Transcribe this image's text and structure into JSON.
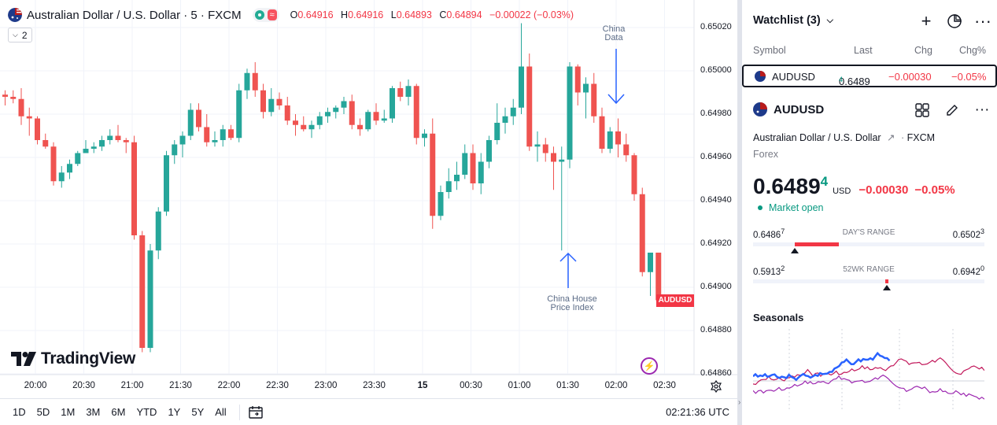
{
  "chart": {
    "symbol_title": "Australian Dollar / U.S. Dollar · 5 · FXCM",
    "ohlc": {
      "o_label": "O",
      "o": "0.64916",
      "h_label": "H",
      "h": "0.64916",
      "l_label": "L",
      "l": "0.64893",
      "c_label": "C",
      "c": "0.64894",
      "change": "−0.00022 (−0.03%)"
    },
    "indicator_count": "2",
    "price_axis": [
      "0.65020",
      "0.65000",
      "0.64980",
      "0.64960",
      "0.64940",
      "0.64920",
      "0.64900",
      "0.64880",
      "0.64860"
    ],
    "last_price_tag": "AUDUSD",
    "time_axis": [
      "20:00",
      "20:30",
      "21:00",
      "21:30",
      "22:00",
      "22:30",
      "23:00",
      "23:30",
      "15",
      "00:30",
      "01:00",
      "01:30",
      "02:00",
      "02:30"
    ],
    "annotations": {
      "china_data": [
        "China",
        "Data"
      ],
      "china_house": [
        "China House",
        "Price Index"
      ]
    },
    "brand": "TradingView",
    "colors": {
      "up": "#26a69a",
      "down": "#ef5350",
      "annotation": "#2962ff"
    }
  },
  "bottom_bar": {
    "ranges": [
      "1D",
      "5D",
      "1M",
      "3M",
      "6M",
      "YTD",
      "1Y",
      "5Y",
      "All"
    ],
    "clock": "02:21:36 UTC"
  },
  "watchlist": {
    "title": "Watchlist (3)",
    "columns": {
      "symbol": "Symbol",
      "last": "Last",
      "chg": "Chg",
      "chgp": "Chg%"
    },
    "row": {
      "symbol": "AUDUSD",
      "last_main": "0.6489",
      "last_sup": "4",
      "chg": "−0.00030",
      "chgp": "−0.05%"
    }
  },
  "details": {
    "symbol": "AUDUSD",
    "name": "Australian Dollar / U.S. Dollar",
    "exchange": "FXCM",
    "type": "Forex",
    "price_main": "0.6489",
    "price_sup": "4",
    "currency": "USD",
    "change": "−0.00030",
    "change_pct": "−0.05%",
    "market_status": "Market open",
    "days_range": {
      "label": "DAY'S RANGE",
      "low_main": "0.6486",
      "low_sup": "7",
      "high_main": "0.6502",
      "high_sup": "3",
      "current_fraction": 0.17
    },
    "wk52_range": {
      "label": "52WK RANGE",
      "low_main": "0.5913",
      "low_sup": "2",
      "high_main": "0.6942",
      "high_sup": "0",
      "current_fraction": 0.57
    },
    "seasonals_title": "Seasonals",
    "seasonal_colors": [
      "#2962ff",
      "#c2185b",
      "#9c27b0"
    ]
  },
  "chart_data": {
    "type": "candlestick",
    "series_name": "AUDUSD",
    "interval": "5",
    "price_range": [
      0.64855,
      0.6503
    ],
    "candles": [
      [
        0.64989,
        0.64991,
        0.64984,
        0.64988
      ],
      [
        0.64988,
        0.64991,
        0.64985,
        0.64987
      ],
      [
        0.64987,
        0.64992,
        0.64975,
        0.64979
      ],
      [
        0.64979,
        0.64983,
        0.6497,
        0.64978
      ],
      [
        0.64978,
        0.64979,
        0.64966,
        0.64968
      ],
      [
        0.64968,
        0.64971,
        0.64964,
        0.64965
      ],
      [
        0.64965,
        0.64967,
        0.64947,
        0.64949
      ],
      [
        0.64949,
        0.64956,
        0.64946,
        0.64953
      ],
      [
        0.64953,
        0.64959,
        0.6495,
        0.64957
      ],
      [
        0.64957,
        0.64963,
        0.64956,
        0.64962
      ],
      [
        0.64962,
        0.64968,
        0.64962,
        0.64964
      ],
      [
        0.64964,
        0.64967,
        0.64962,
        0.64965
      ],
      [
        0.64965,
        0.6497,
        0.64963,
        0.64968
      ],
      [
        0.64968,
        0.64973,
        0.64966,
        0.6497
      ],
      [
        0.6497,
        0.64975,
        0.64967,
        0.64968
      ],
      [
        0.64968,
        0.64969,
        0.64962,
        0.64967
      ],
      [
        0.64967,
        0.6497,
        0.64922,
        0.64924
      ],
      [
        0.64924,
        0.64926,
        0.6487,
        0.64872
      ],
      [
        0.64872,
        0.6492,
        0.6487,
        0.64917
      ],
      [
        0.64917,
        0.64937,
        0.64913,
        0.64935
      ],
      [
        0.64935,
        0.64963,
        0.64933,
        0.64961
      ],
      [
        0.64961,
        0.64968,
        0.64957,
        0.64966
      ],
      [
        0.64966,
        0.64972,
        0.6496,
        0.6497
      ],
      [
        0.6497,
        0.64985,
        0.64968,
        0.64982
      ],
      [
        0.64982,
        0.64985,
        0.64972,
        0.64974
      ],
      [
        0.64974,
        0.6498,
        0.64965,
        0.64967
      ],
      [
        0.64967,
        0.64972,
        0.64965,
        0.64968
      ],
      [
        0.64968,
        0.64975,
        0.64965,
        0.64973
      ],
      [
        0.64973,
        0.64975,
        0.64968,
        0.64969
      ],
      [
        0.64969,
        0.64994,
        0.64967,
        0.64991
      ],
      [
        0.64991,
        0.65001,
        0.64987,
        0.64999
      ],
      [
        0.64999,
        0.65004,
        0.64988,
        0.64991
      ],
      [
        0.64991,
        0.64994,
        0.64978,
        0.64981
      ],
      [
        0.64981,
        0.64992,
        0.64979,
        0.64987
      ],
      [
        0.64987,
        0.6499,
        0.64982,
        0.64984
      ],
      [
        0.64984,
        0.64988,
        0.64975,
        0.64977
      ],
      [
        0.64977,
        0.6498,
        0.6497,
        0.64975
      ],
      [
        0.64975,
        0.64979,
        0.64972,
        0.64973
      ],
      [
        0.64973,
        0.64977,
        0.64969,
        0.64975
      ],
      [
        0.64975,
        0.64981,
        0.64973,
        0.64979
      ],
      [
        0.64979,
        0.64983,
        0.64976,
        0.64981
      ],
      [
        0.64981,
        0.64984,
        0.64978,
        0.64983
      ],
      [
        0.64983,
        0.64988,
        0.6498,
        0.64986
      ],
      [
        0.64986,
        0.64989,
        0.64973,
        0.64975
      ],
      [
        0.64975,
        0.64978,
        0.6497,
        0.64973
      ],
      [
        0.64973,
        0.64982,
        0.64972,
        0.64981
      ],
      [
        0.64981,
        0.64985,
        0.64975,
        0.64977
      ],
      [
        0.64977,
        0.64982,
        0.64976,
        0.64978
      ],
      [
        0.64978,
        0.64993,
        0.64976,
        0.64992
      ],
      [
        0.64992,
        0.64995,
        0.64986,
        0.64988
      ],
      [
        0.64988,
        0.64996,
        0.64984,
        0.64993
      ],
      [
        0.64993,
        0.64994,
        0.64966,
        0.64969
      ],
      [
        0.64969,
        0.64973,
        0.64965,
        0.64971
      ],
      [
        0.64971,
        0.64978,
        0.64927,
        0.64933
      ],
      [
        0.64933,
        0.64947,
        0.64931,
        0.64944
      ],
      [
        0.64944,
        0.64955,
        0.64941,
        0.64949
      ],
      [
        0.64949,
        0.64958,
        0.64945,
        0.64952
      ],
      [
        0.64952,
        0.64966,
        0.6495,
        0.64962
      ],
      [
        0.64962,
        0.64966,
        0.64945,
        0.64948
      ],
      [
        0.64948,
        0.64962,
        0.64943,
        0.64958
      ],
      [
        0.64958,
        0.6497,
        0.64955,
        0.64968
      ],
      [
        0.64968,
        0.64985,
        0.64966,
        0.64976
      ],
      [
        0.64976,
        0.64983,
        0.64971,
        0.64979
      ],
      [
        0.64979,
        0.64987,
        0.64975,
        0.64983
      ],
      [
        0.64983,
        0.65022,
        0.6498,
        0.65002
      ],
      [
        0.65002,
        0.65008,
        0.64963,
        0.64965
      ],
      [
        0.64965,
        0.64972,
        0.64958,
        0.64966
      ],
      [
        0.64966,
        0.64969,
        0.64958,
        0.64962
      ],
      [
        0.64962,
        0.64965,
        0.64945,
        0.64958
      ],
      [
        0.64958,
        0.64965,
        0.64917,
        0.64959
      ],
      [
        0.64959,
        0.65004,
        0.64955,
        0.65002
      ],
      [
        0.65002,
        0.65003,
        0.64984,
        0.6499
      ],
      [
        0.6499,
        0.64997,
        0.64978,
        0.64994
      ],
      [
        0.64994,
        0.64999,
        0.64976,
        0.64979
      ],
      [
        0.64979,
        0.64983,
        0.64962,
        0.64964
      ],
      [
        0.64964,
        0.64974,
        0.64962,
        0.64972
      ],
      [
        0.64972,
        0.64978,
        0.6496,
        0.64966
      ],
      [
        0.64966,
        0.64971,
        0.64958,
        0.64961
      ],
      [
        0.64961,
        0.64962,
        0.6494,
        0.64943
      ],
      [
        0.64943,
        0.64946,
        0.64905,
        0.64907
      ],
      [
        0.64907,
        0.64916,
        0.64896,
        0.64916
      ],
      [
        0.64916,
        0.64916,
        0.64893,
        0.64894
      ]
    ]
  }
}
